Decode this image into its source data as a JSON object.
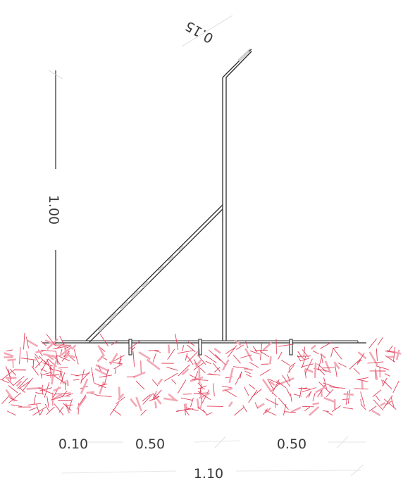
{
  "dimensions": {
    "height_label": "1.00",
    "top_bend_label": "0.15",
    "base_left_label": "0.10",
    "base_mid_label": "0.50",
    "base_right_label": "0.50",
    "total_width_label": "1.10"
  },
  "colors": {
    "line": "#2b2b2b",
    "soil_hatch": "#e0405a",
    "soil_hatch_light": "#f2a8b6",
    "faint_line": "#d6d6d6",
    "text": "#3a3a3a"
  }
}
